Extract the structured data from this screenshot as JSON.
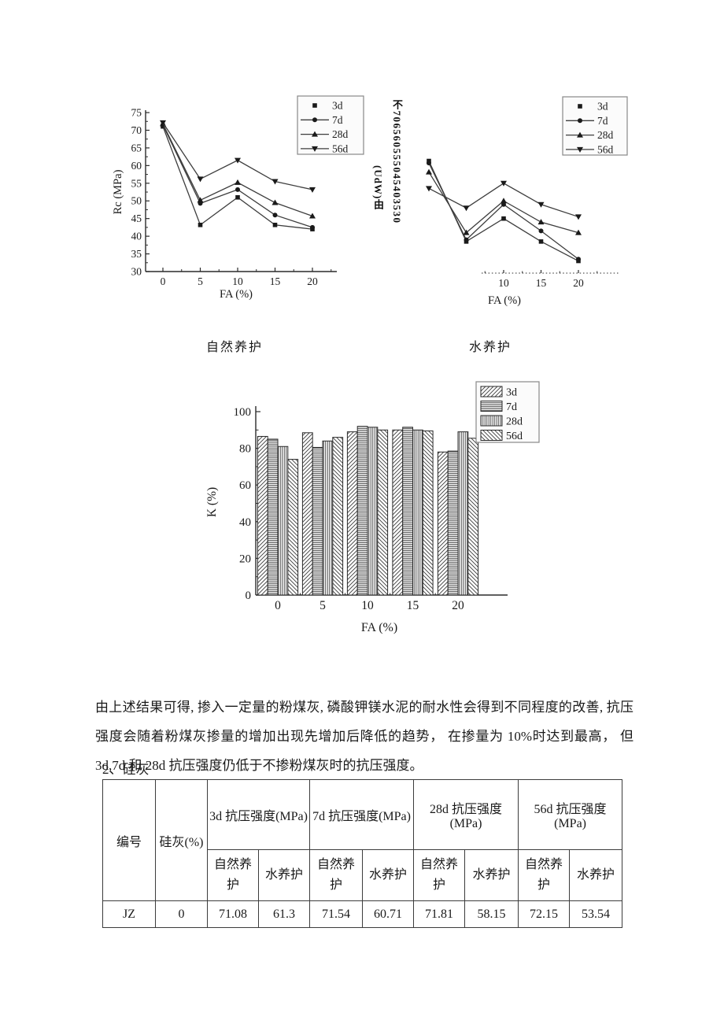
{
  "page": {
    "background": "#ffffff"
  },
  "captions": {
    "natural": "自然养护",
    "water": "水养护"
  },
  "paragraph": "由上述结果可得, 掺入一定量的粉煤灰, 磷酸钾镁水泥的耐水性会得到不同程度的改善, 抗压强度会随着粉煤灰掺量的增加出现先增加后降低的趋势， 在掺量为 10%时达到最高， 但 3d,7d 和 28d 抗压强度仍低于不掺粉煤灰时的抗压强度。",
  "section_heading": "2、硅灰",
  "chart_data": [
    {
      "id": "natural",
      "type": "line",
      "title": "自然养护",
      "xlabel": "FA (%)",
      "ylabel": "Rc (MPa)",
      "x": [
        0,
        5,
        10,
        15,
        20
      ],
      "ylim": [
        30,
        75
      ],
      "yticks": [
        30,
        35,
        40,
        45,
        50,
        55,
        60,
        65,
        70,
        75
      ],
      "xticks": [
        0,
        5,
        10,
        15,
        20
      ],
      "legend_position": "upper-right",
      "markers": [
        "square",
        "circle",
        "triangle-up",
        "triangle-down"
      ],
      "series": [
        {
          "name": "3d",
          "values": [
            71.08,
            43.2,
            51.0,
            43.2,
            42.0
          ]
        },
        {
          "name": "7d",
          "values": [
            71.54,
            49.3,
            53.2,
            46.0,
            42.5
          ]
        },
        {
          "name": "28d",
          "values": [
            71.81,
            50.2,
            55.2,
            49.5,
            45.7
          ]
        },
        {
          "name": "56d",
          "values": [
            72.15,
            56.2,
            61.5,
            55.5,
            53.2
          ]
        }
      ]
    },
    {
      "id": "water",
      "type": "line",
      "title": "水养护",
      "xlabel": "FA (%)",
      "ylabel_garbled_col1": "不706560555045403530",
      "ylabel_garbled_col2": "(UdW)由",
      "x": [
        0,
        5,
        10,
        15,
        20
      ],
      "ylim": [
        30,
        70
      ],
      "visible_xtick_labels": [
        "10",
        "15",
        "20"
      ],
      "visible_xtick_values": [
        10,
        15,
        20
      ],
      "legend_position": "upper-right",
      "markers": [
        "square",
        "circle",
        "triangle-up",
        "triangle-down"
      ],
      "series": [
        {
          "name": "3d",
          "values": [
            61.3,
            38.5,
            45.0,
            38.5,
            33.0
          ]
        },
        {
          "name": "7d",
          "values": [
            60.71,
            39.0,
            49.0,
            41.5,
            33.5
          ]
        },
        {
          "name": "28d",
          "values": [
            58.15,
            41.0,
            50.0,
            44.0,
            41.0
          ]
        },
        {
          "name": "56d",
          "values": [
            53.54,
            48.0,
            55.0,
            49.0,
            45.5
          ]
        }
      ]
    },
    {
      "id": "k_ratio",
      "type": "bar",
      "title": "",
      "xlabel": "FA (%)",
      "ylabel": "K (%)",
      "categories": [
        0,
        5,
        10,
        15,
        20
      ],
      "ylim": [
        0,
        100
      ],
      "yticks": [
        0,
        20,
        40,
        60,
        80,
        100
      ],
      "legend_position": "upper-right",
      "hatches": [
        "diag-up",
        "horizontal",
        "vertical",
        "diag-down"
      ],
      "series": [
        {
          "name": "3d",
          "values": [
            86.5,
            88.5,
            89.0,
            90.0,
            78.0
          ]
        },
        {
          "name": "7d",
          "values": [
            85.0,
            80.5,
            92.0,
            91.5,
            78.5
          ]
        },
        {
          "name": "28d",
          "values": [
            81.0,
            84.0,
            91.5,
            90.0,
            89.0
          ]
        },
        {
          "name": "56d",
          "values": [
            74.0,
            86.0,
            90.0,
            89.5,
            85.5
          ]
        }
      ]
    }
  ],
  "table": {
    "header": {
      "col1": "编号",
      "col2": "硅灰(%)",
      "groups": [
        {
          "label": "3d 抗压强度(MPa)"
        },
        {
          "label": "7d 抗压强度(MPa)"
        },
        {
          "label": "28d 抗压强度(MPa)"
        },
        {
          "label": "56d 抗压强度(MPa)"
        }
      ],
      "sub_natural": "自然养护",
      "sub_water": "水养护"
    },
    "rows": [
      {
        "id": "JZ",
        "silica_pct": "0",
        "values": [
          "71.08",
          "61.3",
          "71.54",
          "60.71",
          "71.81",
          "58.15",
          "72.15",
          "53.54"
        ]
      }
    ]
  }
}
